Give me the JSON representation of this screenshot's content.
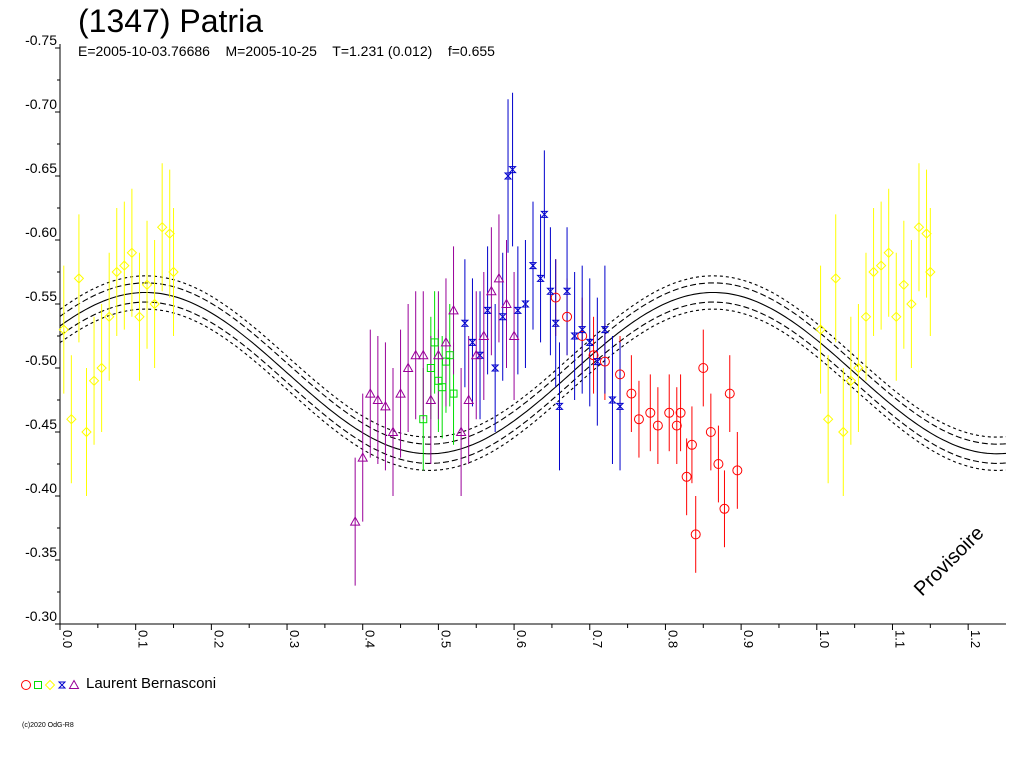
{
  "chart_data": {
    "type": "scatter",
    "title": "(1347) Patria",
    "subtitle": "E=2005-10-03.76686    M=2005-10-25    T=1.231 (0.012)    f=0.655",
    "xlabel": "",
    "ylabel": "",
    "xlim": [
      0.0,
      1.25
    ],
    "ylim": [
      -0.75,
      -0.3
    ],
    "x_ticks": [
      "0.0",
      "0.1",
      "0.2",
      "0.3",
      "0.4",
      "0.5",
      "0.6",
      "0.7",
      "0.8",
      "0.9",
      "1.0",
      "1.1",
      "1.2"
    ],
    "y_ticks": [
      "-0.75",
      "-0.70",
      "-0.65",
      "-0.60",
      "-0.55",
      "-0.50",
      "-0.45",
      "-0.40",
      "-0.35",
      "-0.30"
    ],
    "grid": false,
    "fit_curve": {
      "description_visible": false,
      "mean": -0.496,
      "amplitude": 0.063,
      "phase_of_max_brightness": 0.113,
      "period_in_phase": 0.75,
      "envelope_offsets": [
        0.0075,
        0.013
      ]
    },
    "series": [
      {
        "marker": "circle",
        "color": "#ff0000",
        "points": [
          [
            0.655,
            -0.555,
            0.03
          ],
          [
            0.67,
            -0.54,
            0.03
          ],
          [
            0.69,
            -0.525,
            0.03
          ],
          [
            0.705,
            -0.51,
            0.03
          ],
          [
            0.72,
            -0.505,
            0.03
          ],
          [
            0.74,
            -0.495,
            0.03
          ],
          [
            0.755,
            -0.48,
            0.03
          ],
          [
            0.765,
            -0.46,
            0.03
          ],
          [
            0.78,
            -0.465,
            0.03
          ],
          [
            0.79,
            -0.455,
            0.03
          ],
          [
            0.805,
            -0.465,
            0.03
          ],
          [
            0.815,
            -0.455,
            0.03
          ],
          [
            0.82,
            -0.465,
            0.03
          ],
          [
            0.828,
            -0.415,
            0.03
          ],
          [
            0.835,
            -0.44,
            0.03
          ],
          [
            0.84,
            -0.37,
            0.03
          ],
          [
            0.85,
            -0.5,
            0.03
          ],
          [
            0.86,
            -0.45,
            0.03
          ],
          [
            0.87,
            -0.425,
            0.03
          ],
          [
            0.878,
            -0.39,
            0.03
          ],
          [
            0.885,
            -0.48,
            0.03
          ],
          [
            0.895,
            -0.42,
            0.03
          ]
        ]
      },
      {
        "marker": "square",
        "color": "#00dd00",
        "points": [
          [
            0.48,
            -0.46,
            0.04
          ],
          [
            0.49,
            -0.5,
            0.04
          ],
          [
            0.495,
            -0.52,
            0.04
          ],
          [
            0.5,
            -0.49,
            0.04
          ],
          [
            0.505,
            -0.485,
            0.04
          ],
          [
            0.51,
            -0.505,
            0.04
          ],
          [
            0.515,
            -0.51,
            0.04
          ],
          [
            0.52,
            -0.48,
            0.04
          ]
        ]
      },
      {
        "marker": "diamond",
        "color": "#ffff00",
        "points": [
          [
            0.005,
            -0.53,
            0.05
          ],
          [
            0.015,
            -0.46,
            0.05
          ],
          [
            0.025,
            -0.57,
            0.05
          ],
          [
            0.035,
            -0.45,
            0.05
          ],
          [
            0.045,
            -0.49,
            0.05
          ],
          [
            0.055,
            -0.5,
            0.05
          ],
          [
            0.065,
            -0.54,
            0.05
          ],
          [
            0.075,
            -0.575,
            0.05
          ],
          [
            0.085,
            -0.58,
            0.05
          ],
          [
            0.095,
            -0.59,
            0.05
          ],
          [
            0.105,
            -0.54,
            0.05
          ],
          [
            0.115,
            -0.565,
            0.05
          ],
          [
            0.125,
            -0.55,
            0.05
          ],
          [
            0.135,
            -0.61,
            0.05
          ],
          [
            0.145,
            -0.605,
            0.05
          ],
          [
            0.15,
            -0.575,
            0.05
          ],
          [
            1.005,
            -0.53,
            0.05
          ],
          [
            1.015,
            -0.46,
            0.05
          ],
          [
            1.025,
            -0.57,
            0.05
          ],
          [
            1.035,
            -0.45,
            0.05
          ],
          [
            1.045,
            -0.49,
            0.05
          ],
          [
            1.055,
            -0.5,
            0.05
          ],
          [
            1.065,
            -0.54,
            0.05
          ],
          [
            1.075,
            -0.575,
            0.05
          ],
          [
            1.085,
            -0.58,
            0.05
          ],
          [
            1.095,
            -0.59,
            0.05
          ],
          [
            1.105,
            -0.54,
            0.05
          ],
          [
            1.115,
            -0.565,
            0.05
          ],
          [
            1.125,
            -0.55,
            0.05
          ],
          [
            1.135,
            -0.61,
            0.05
          ],
          [
            1.145,
            -0.605,
            0.05
          ],
          [
            1.15,
            -0.575,
            0.05
          ]
        ]
      },
      {
        "marker": "bowtie",
        "color": "#0000cc",
        "points": [
          [
            0.535,
            -0.535,
            0.05
          ],
          [
            0.545,
            -0.52,
            0.05
          ],
          [
            0.555,
            -0.51,
            0.05
          ],
          [
            0.565,
            -0.545,
            0.05
          ],
          [
            0.575,
            -0.5,
            0.05
          ],
          [
            0.585,
            -0.54,
            0.05
          ],
          [
            0.592,
            -0.65,
            0.06
          ],
          [
            0.598,
            -0.655,
            0.06
          ],
          [
            0.605,
            -0.545,
            0.05
          ],
          [
            0.615,
            -0.55,
            0.05
          ],
          [
            0.625,
            -0.58,
            0.05
          ],
          [
            0.635,
            -0.57,
            0.05
          ],
          [
            0.64,
            -0.62,
            0.05
          ],
          [
            0.648,
            -0.56,
            0.05
          ],
          [
            0.655,
            -0.535,
            0.05
          ],
          [
            0.66,
            -0.47,
            0.05
          ],
          [
            0.67,
            -0.56,
            0.05
          ],
          [
            0.68,
            -0.525,
            0.05
          ],
          [
            0.69,
            -0.53,
            0.05
          ],
          [
            0.7,
            -0.52,
            0.05
          ],
          [
            0.71,
            -0.505,
            0.05
          ],
          [
            0.72,
            -0.53,
            0.05
          ],
          [
            0.73,
            -0.475,
            0.05
          ],
          [
            0.74,
            -0.47,
            0.05
          ]
        ]
      },
      {
        "marker": "triangle",
        "color": "#990099",
        "points": [
          [
            0.39,
            -0.38,
            0.05
          ],
          [
            0.4,
            -0.43,
            0.05
          ],
          [
            0.41,
            -0.48,
            0.05
          ],
          [
            0.42,
            -0.475,
            0.05
          ],
          [
            0.43,
            -0.47,
            0.05
          ],
          [
            0.44,
            -0.45,
            0.05
          ],
          [
            0.45,
            -0.48,
            0.05
          ],
          [
            0.46,
            -0.5,
            0.05
          ],
          [
            0.47,
            -0.51,
            0.05
          ],
          [
            0.48,
            -0.51,
            0.05
          ],
          [
            0.49,
            -0.475,
            0.05
          ],
          [
            0.5,
            -0.51,
            0.05
          ],
          [
            0.51,
            -0.52,
            0.05
          ],
          [
            0.52,
            -0.545,
            0.05
          ],
          [
            0.53,
            -0.45,
            0.05
          ],
          [
            0.54,
            -0.475,
            0.05
          ],
          [
            0.55,
            -0.51,
            0.05
          ],
          [
            0.56,
            -0.525,
            0.05
          ],
          [
            0.57,
            -0.56,
            0.05
          ],
          [
            0.58,
            -0.57,
            0.05
          ],
          [
            0.59,
            -0.55,
            0.05
          ],
          [
            0.6,
            -0.525,
            0.05
          ]
        ]
      }
    ]
  },
  "legend": {
    "observer": "Laurent Bernasconi"
  },
  "watermark": "Provisoire",
  "copyright": "(c)2020 OdG-R8"
}
